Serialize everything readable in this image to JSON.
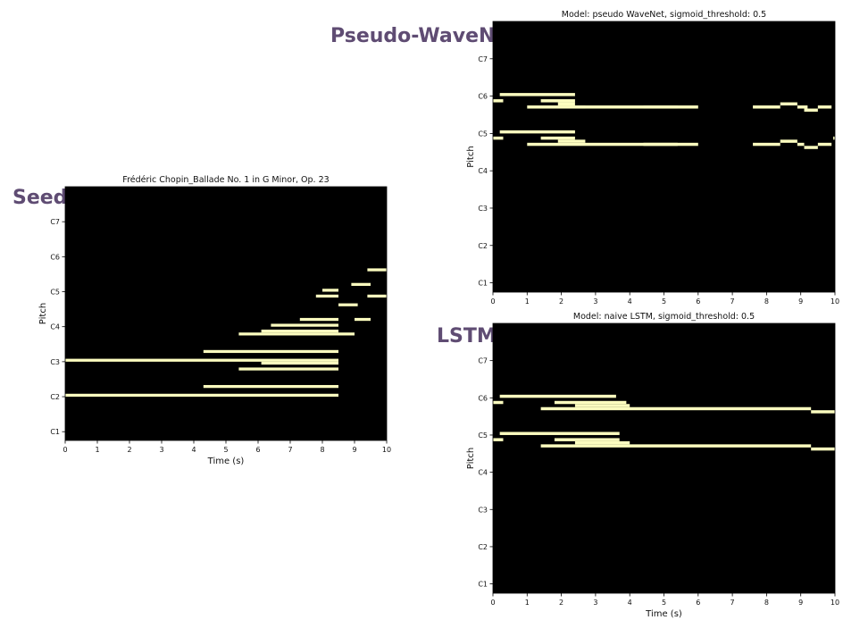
{
  "labels": {
    "seed": "Seed",
    "wavenet": "Pseudo-WaveNet",
    "lstm": "LSTM"
  },
  "colors": {
    "background": "#ffffff",
    "plot_bg": "#000000",
    "note": "#fcfdbf",
    "label": "#5f4c73"
  },
  "chart_data": [
    {
      "id": "seed",
      "type": "piano-roll",
      "title": "Frédéric Chopin_Ballade No. 1 in G Minor, Op. 23",
      "xlabel": "Time (s)",
      "ylabel": "Pitch",
      "xlim": [
        0,
        10
      ],
      "ylim": [
        21,
        108
      ],
      "xticks": [
        0,
        1,
        2,
        3,
        4,
        5,
        6,
        7,
        8,
        9,
        10
      ],
      "yticks": [
        {
          "label": "C1",
          "midi": 24
        },
        {
          "label": "C2",
          "midi": 36
        },
        {
          "label": "C3",
          "midi": 48
        },
        {
          "label": "C4",
          "midi": 60
        },
        {
          "label": "C5",
          "midi": 72
        },
        {
          "label": "C6",
          "midi": 84
        },
        {
          "label": "C7",
          "midi": 96
        }
      ],
      "notes": [
        {
          "pitch": 36,
          "start": 0.0,
          "end": 8.5
        },
        {
          "pitch": 48,
          "start": 0.0,
          "end": 8.5
        },
        {
          "pitch": 39,
          "start": 4.3,
          "end": 8.5
        },
        {
          "pitch": 51,
          "start": 4.3,
          "end": 8.5
        },
        {
          "pitch": 45,
          "start": 5.4,
          "end": 8.5
        },
        {
          "pitch": 47,
          "start": 6.1,
          "end": 8.5
        },
        {
          "pitch": 57,
          "start": 5.4,
          "end": 9.0
        },
        {
          "pitch": 58,
          "start": 6.1,
          "end": 8.5
        },
        {
          "pitch": 60,
          "start": 6.4,
          "end": 8.5
        },
        {
          "pitch": 62,
          "start": 7.3,
          "end": 8.5
        },
        {
          "pitch": 70,
          "start": 7.8,
          "end": 8.5
        },
        {
          "pitch": 72,
          "start": 8.0,
          "end": 8.5
        },
        {
          "pitch": 67,
          "start": 8.5,
          "end": 9.1
        },
        {
          "pitch": 74,
          "start": 8.9,
          "end": 9.5
        },
        {
          "pitch": 62,
          "start": 9.0,
          "end": 9.5
        },
        {
          "pitch": 70,
          "start": 9.4,
          "end": 10.0
        },
        {
          "pitch": 79,
          "start": 9.4,
          "end": 10.0
        }
      ]
    },
    {
      "id": "wavenet",
      "type": "piano-roll",
      "title": "Model: pseudo WaveNet, sigmoid_threshold: 0.5",
      "xlabel": "",
      "ylabel": "Pitch",
      "xlim": [
        0,
        10
      ],
      "ylim": [
        21,
        108
      ],
      "xticks": [
        0,
        1,
        2,
        3,
        4,
        5,
        6,
        7,
        8,
        9,
        10
      ],
      "yticks": [
        {
          "label": "C1",
          "midi": 24
        },
        {
          "label": "C2",
          "midi": 36
        },
        {
          "label": "C3",
          "midi": 48
        },
        {
          "label": "C4",
          "midi": 60
        },
        {
          "label": "C5",
          "midi": 72
        },
        {
          "label": "C6",
          "midi": 84
        },
        {
          "label": "C7",
          "midi": 96
        }
      ],
      "notes": [
        {
          "pitch": 84,
          "start": 0.2,
          "end": 2.4
        },
        {
          "pitch": 82,
          "start": 0.0,
          "end": 0.3
        },
        {
          "pitch": 82,
          "start": 1.4,
          "end": 2.4
        },
        {
          "pitch": 81,
          "start": 1.9,
          "end": 2.4
        },
        {
          "pitch": 80,
          "start": 1.0,
          "end": 2.7
        },
        {
          "pitch": 80,
          "start": 2.4,
          "end": 6.0
        },
        {
          "pitch": 80,
          "start": 4.4,
          "end": 5.4
        },
        {
          "pitch": 72,
          "start": 0.2,
          "end": 2.4
        },
        {
          "pitch": 70,
          "start": 0.0,
          "end": 0.3
        },
        {
          "pitch": 70,
          "start": 1.4,
          "end": 2.4
        },
        {
          "pitch": 69,
          "start": 1.9,
          "end": 2.7
        },
        {
          "pitch": 68,
          "start": 1.0,
          "end": 6.0
        },
        {
          "pitch": 68,
          "start": 4.4,
          "end": 5.4
        },
        {
          "pitch": 80,
          "start": 7.6,
          "end": 8.4
        },
        {
          "pitch": 81,
          "start": 8.4,
          "end": 8.9
        },
        {
          "pitch": 80,
          "start": 8.9,
          "end": 9.2
        },
        {
          "pitch": 79,
          "start": 9.1,
          "end": 9.5
        },
        {
          "pitch": 80,
          "start": 9.5,
          "end": 9.9
        },
        {
          "pitch": 68,
          "start": 7.6,
          "end": 8.4
        },
        {
          "pitch": 69,
          "start": 8.4,
          "end": 8.9
        },
        {
          "pitch": 68,
          "start": 8.9,
          "end": 9.1
        },
        {
          "pitch": 67,
          "start": 9.1,
          "end": 9.5
        },
        {
          "pitch": 68,
          "start": 9.5,
          "end": 9.9
        },
        {
          "pitch": 70,
          "start": 9.95,
          "end": 10.0
        }
      ]
    },
    {
      "id": "lstm",
      "type": "piano-roll",
      "title": "Model: naive LSTM, sigmoid_threshold: 0.5",
      "xlabel": "Time (s)",
      "ylabel": "Pitch",
      "xlim": [
        0,
        10
      ],
      "ylim": [
        21,
        108
      ],
      "xticks": [
        0,
        1,
        2,
        3,
        4,
        5,
        6,
        7,
        8,
        9,
        10
      ],
      "yticks": [
        {
          "label": "C1",
          "midi": 24
        },
        {
          "label": "C2",
          "midi": 36
        },
        {
          "label": "C3",
          "midi": 48
        },
        {
          "label": "C4",
          "midi": 60
        },
        {
          "label": "C5",
          "midi": 72
        },
        {
          "label": "C6",
          "midi": 84
        },
        {
          "label": "C7",
          "midi": 96
        }
      ],
      "notes": [
        {
          "pitch": 84,
          "start": 0.2,
          "end": 3.6
        },
        {
          "pitch": 82,
          "start": 0.0,
          "end": 0.3
        },
        {
          "pitch": 82,
          "start": 1.8,
          "end": 3.9
        },
        {
          "pitch": 81,
          "start": 2.4,
          "end": 4.0
        },
        {
          "pitch": 80,
          "start": 1.4,
          "end": 9.3
        },
        {
          "pitch": 79,
          "start": 9.3,
          "end": 10.0
        },
        {
          "pitch": 72,
          "start": 0.2,
          "end": 3.7
        },
        {
          "pitch": 70,
          "start": 0.0,
          "end": 0.3
        },
        {
          "pitch": 70,
          "start": 1.8,
          "end": 3.7
        },
        {
          "pitch": 69,
          "start": 2.4,
          "end": 4.0
        },
        {
          "pitch": 68,
          "start": 1.4,
          "end": 9.3
        },
        {
          "pitch": 67,
          "start": 9.3,
          "end": 10.0
        }
      ]
    }
  ]
}
